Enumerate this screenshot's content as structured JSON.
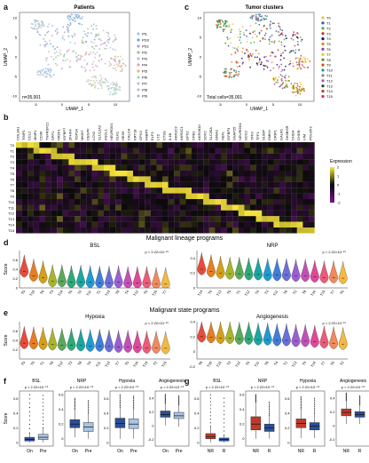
{
  "figure": {
    "panel_labels": [
      "a",
      "c",
      "b",
      "d",
      "e",
      "f",
      "g"
    ]
  },
  "panel_a": {
    "title": "Patients",
    "xlabel": "UMAP_1",
    "ylabel": "UMAP_2",
    "annotation": "n=35,001",
    "legend": [
      "Pt1",
      "Pt10",
      "Pt11",
      "Pt2",
      "Pt3",
      "Pt4",
      "Pt5",
      "Pt6",
      "Pt7",
      "Pt8",
      "Pt9"
    ],
    "legend_colors": [
      "#9fc6e8",
      "#6fa5d8",
      "#b5a0cf",
      "#8bc98b",
      "#c8b4e0",
      "#d5a5c5",
      "#e8b870",
      "#a6d6b0",
      "#b7c5e2",
      "#c2c2c2",
      "#a0bfe0"
    ],
    "yticks": [
      "10",
      "5",
      "0",
      "-5",
      "-10"
    ],
    "xticks": [
      "-5",
      "0",
      "5",
      "10"
    ]
  },
  "panel_c": {
    "title": "Tumor clusters",
    "xlabel": "UMAP_1",
    "ylabel": "UMAP_2",
    "annotation": "Total cells=35,001",
    "legend": [
      "T0",
      "T1",
      "T2",
      "T3",
      "T4",
      "T5",
      "T6",
      "T7",
      "T8",
      "T9",
      "T10",
      "T11",
      "T12",
      "T13",
      "T14",
      "T15"
    ],
    "legend_colors": [
      "#e8c040",
      "#2f5fa8",
      "#4cae4c",
      "#c0392b",
      "#1a1a6e",
      "#e67e22",
      "#8e44ad",
      "#f1c40f",
      "#6b8e23",
      "#d35400",
      "#16a085",
      "#7f8c8d",
      "#9b59b6",
      "#2c3e50",
      "#c0392b",
      "#e91e63"
    ],
    "yticks": [
      "10",
      "5",
      "0",
      "-5",
      "-10"
    ],
    "xticks": [
      "-5",
      "0",
      "5",
      "10"
    ]
  },
  "panel_b": {
    "genes": [
      "COL3A1",
      "TIMP1",
      "CCL2",
      "MMP1",
      "CD36",
      "TNFRSF21",
      "SPP1",
      "NR2F1",
      "IGFBP7",
      "ZFHX4",
      "TOP2A",
      "MKI67",
      "CENPF",
      "LCN2",
      "SLC12A2",
      "ASCL1",
      "NEUROD1",
      "DLK1",
      "HES6",
      "CALCA",
      "KRT18",
      "GPX3",
      "FABP5",
      "ELF3",
      "LYZ",
      "CTSS",
      "IL1B",
      "AKR1C3",
      "AKR1C1",
      "GPX2",
      "CPB1",
      "AKR1B10",
      "SOX2",
      "SLC35A",
      "GRIA2",
      "NEFL",
      "IGFBP3",
      "SNAP25",
      "NEUROD4",
      "SCG2",
      "TFF3",
      "TFF1",
      "S100P",
      "DMKN",
      "CRIP1",
      "GALR1",
      "SH3BGR",
      "CHGA",
      "CHGB",
      "VIM",
      "POU2F3"
    ],
    "clusters": [
      "T0",
      "T1",
      "T2",
      "T3",
      "T4",
      "T5",
      "T6",
      "T7",
      "T8",
      "T9",
      "T10",
      "T11",
      "T12",
      "T13",
      "T14",
      "T15"
    ],
    "legend_title": "Expression",
    "legend_ticks": [
      "2",
      "1",
      "0",
      "-1",
      "-2"
    ]
  },
  "panel_d": {
    "section_title": "Malignant lineage programs",
    "ylabel": "Score",
    "left": {
      "title": "BSL",
      "pvalue": "p < 2.22×10⁻¹⁶",
      "order": [
        "T0",
        "T15",
        "T6",
        "T3",
        "T14",
        "T5",
        "T2",
        "T11",
        "T1",
        "T13",
        "T8",
        "T4",
        "T12",
        "T9",
        "T10",
        "T7"
      ],
      "ylim": [
        0,
        0.8
      ],
      "yticks": [
        "0.6",
        "0.4",
        "0.2",
        "0"
      ],
      "medians": [
        0.35,
        0.26,
        0.22,
        0.14,
        0.14,
        0.12,
        0.13,
        0.12,
        0.11,
        0.11,
        0.12,
        0.1,
        0.1,
        0.1,
        0.08,
        0.08
      ]
    },
    "right": {
      "title": "NRP",
      "pvalue": "p < 2.22×10⁻¹⁶",
      "order": [
        "T14",
        "T9",
        "T13",
        "T5",
        "T1",
        "T12",
        "T4",
        "T3",
        "T11",
        "T6",
        "T2",
        "T8",
        "T10",
        "T15",
        "T7",
        "T0"
      ],
      "ylim": [
        0,
        0.5
      ],
      "yticks": [
        "0.4",
        "0.2",
        "0"
      ],
      "medians": [
        0.25,
        0.22,
        0.2,
        0.19,
        0.19,
        0.18,
        0.18,
        0.17,
        0.17,
        0.17,
        0.16,
        0.16,
        0.15,
        0.14,
        0.14,
        0.13
      ]
    }
  },
  "panel_e": {
    "section_title": "Malignant state programs",
    "ylabel": "Score",
    "left": {
      "title": "Hypoxia",
      "pvalue": "p < 2.22×10⁻¹⁶",
      "order": [
        "T9",
        "T5",
        "T1",
        "T6",
        "T12",
        "T3",
        "T8",
        "T4",
        "T11",
        "T13",
        "T7",
        "T0",
        "T10",
        "T14",
        "T2",
        "T15"
      ],
      "ylim": [
        0,
        0.8
      ],
      "yticks": [
        "0.6",
        "0.4",
        "0.2"
      ],
      "medians": [
        0.34,
        0.33,
        0.32,
        0.31,
        0.3,
        0.3,
        0.29,
        0.28,
        0.28,
        0.27,
        0.26,
        0.26,
        0.25,
        0.24,
        0.24,
        0.23
      ]
    },
    "right": {
      "title": "Angiogenesis",
      "pvalue": "p < 2.22×10⁻¹⁶",
      "order": [
        "T8",
        "T10",
        "T15",
        "T3",
        "T12",
        "T5",
        "T11",
        "T6",
        "T4",
        "T1",
        "T13",
        "T9",
        "T14",
        "T7",
        "T0",
        "T2"
      ],
      "ylim": [
        -0.1,
        0.4
      ],
      "yticks": [
        "0.4",
        "0.2",
        "0",
        "-0.2"
      ],
      "medians": [
        0.2,
        0.19,
        0.18,
        0.18,
        0.17,
        0.17,
        0.16,
        0.16,
        0.15,
        0.15,
        0.14,
        0.14,
        0.13,
        0.12,
        0.11,
        0.1
      ]
    }
  },
  "panel_f": {
    "ylabel": "Score",
    "groups": [
      "On",
      "Pre"
    ],
    "colors": [
      "#2a4f9a",
      "#a9c4e6"
    ],
    "plots": [
      {
        "title": "BSL",
        "pvalue": "p < 2.22×10⁻¹⁶",
        "yticks": [
          "0.6",
          "0.4",
          "0.2",
          "0"
        ],
        "ylim": [
          -0.05,
          0.7
        ],
        "boxes": [
          {
            "q1": 0.02,
            "med": 0.04,
            "q3": 0.07,
            "lo": 0.0,
            "hi": 0.13,
            "top": 0.65
          },
          {
            "q1": 0.04,
            "med": 0.07,
            "q3": 0.11,
            "lo": 0.0,
            "hi": 0.2,
            "top": 0.64
          }
        ]
      },
      {
        "title": "NRP",
        "pvalue": "p < 2.22×10⁻¹⁶",
        "yticks": [
          "0.6",
          "0.4",
          "0.2",
          "0"
        ],
        "ylim": [
          -0.1,
          0.65
        ],
        "boxes": [
          {
            "q1": 0.15,
            "med": 0.2,
            "q3": 0.26,
            "lo": 0.02,
            "hi": 0.4,
            "top": 0.55
          },
          {
            "q1": 0.1,
            "med": 0.16,
            "q3": 0.22,
            "lo": 0.0,
            "hi": 0.35,
            "top": 0.52
          }
        ]
      },
      {
        "title": "Hypoxia",
        "pvalue": "p < 2.22×10⁻¹⁶",
        "yticks": [
          "0.6",
          "0.4",
          "0.2",
          "0"
        ],
        "ylim": [
          -0.05,
          0.7
        ],
        "boxes": [
          {
            "q1": 0.2,
            "med": 0.26,
            "q3": 0.33,
            "lo": 0.05,
            "hi": 0.48,
            "top": 0.65
          },
          {
            "q1": 0.19,
            "med": 0.25,
            "q3": 0.32,
            "lo": 0.05,
            "hi": 0.46,
            "top": 0.63
          }
        ]
      },
      {
        "title": "Angiogenesis",
        "pvalue": "p < 2.22×10⁻¹⁶",
        "yticks": [
          "0.4",
          "0.2",
          "0",
          "-0.2"
        ],
        "ylim": [
          -0.3,
          0.5
        ],
        "boxes": [
          {
            "q1": 0.12,
            "med": 0.16,
            "q3": 0.21,
            "lo": 0.0,
            "hi": 0.32,
            "top": 0.45
          },
          {
            "q1": 0.1,
            "med": 0.14,
            "q3": 0.19,
            "lo": -0.02,
            "hi": 0.3,
            "top": 0.43
          }
        ]
      }
    ]
  },
  "panel_g": {
    "groups": [
      "NR",
      "R"
    ],
    "colors": [
      "#c0392b",
      "#2a4f9a"
    ],
    "plots": [
      {
        "title": "BSL",
        "pvalue": "p < 2.22×10⁻¹⁶",
        "yticks": [
          "0.6",
          "0.4",
          "0.2",
          "0"
        ],
        "ylim": [
          -0.05,
          0.7
        ],
        "boxes": [
          {
            "q1": 0.05,
            "med": 0.08,
            "q3": 0.12,
            "lo": 0.0,
            "hi": 0.22,
            "top": 0.65
          },
          {
            "q1": 0.02,
            "med": 0.04,
            "q3": 0.06,
            "lo": 0.0,
            "hi": 0.1,
            "top": 0.6
          }
        ]
      },
      {
        "title": "NRP",
        "pvalue": "p < 2.22×10⁻¹⁶",
        "yticks": [
          "0.6",
          "0.4",
          "0.2",
          "0"
        ],
        "ylim": [
          -0.1,
          0.65
        ],
        "boxes": [
          {
            "q1": 0.12,
            "med": 0.2,
            "q3": 0.3,
            "lo": 0.0,
            "hi": 0.5,
            "top": 0.6
          },
          {
            "q1": 0.1,
            "med": 0.15,
            "q3": 0.2,
            "lo": 0.0,
            "hi": 0.32,
            "top": 0.5
          }
        ]
      },
      {
        "title": "Hypoxia",
        "pvalue": "p < 2.22×10⁻¹⁶",
        "yticks": [
          "0.6",
          "0.4",
          "0.2",
          "0"
        ],
        "ylim": [
          -0.05,
          0.7
        ],
        "boxes": [
          {
            "q1": 0.2,
            "med": 0.26,
            "q3": 0.32,
            "lo": 0.06,
            "hi": 0.46,
            "top": 0.62
          },
          {
            "q1": 0.17,
            "med": 0.22,
            "q3": 0.27,
            "lo": 0.06,
            "hi": 0.4,
            "top": 0.6
          }
        ]
      },
      {
        "title": "Angiogenesis",
        "pvalue": "p < 2.22×10⁻¹⁶",
        "yticks": [
          "0.4",
          "0.2",
          "0",
          "-0.2"
        ],
        "ylim": [
          -0.3,
          0.5
        ],
        "boxes": [
          {
            "q1": 0.14,
            "med": 0.19,
            "q3": 0.24,
            "lo": 0.02,
            "hi": 0.36,
            "top": 0.47
          },
          {
            "q1": 0.12,
            "med": 0.16,
            "q3": 0.2,
            "lo": 0.02,
            "hi": 0.3,
            "top": 0.43
          }
        ]
      }
    ]
  },
  "palette": {
    "violin": [
      "#e74c3c",
      "#e67e22",
      "#d4a017",
      "#a7b52b",
      "#5aa95a",
      "#2eaa78",
      "#1aa7a0",
      "#1f9bd1",
      "#3d7fd9",
      "#6b6fd9",
      "#9a5fd3",
      "#c350b8",
      "#e0489a",
      "#ee5a7a",
      "#f08a5d",
      "#f4b942"
    ],
    "heat_low": "#2b0a3d",
    "heat_mid": "#0a0a0a",
    "heat_high": "#f7e43a"
  }
}
